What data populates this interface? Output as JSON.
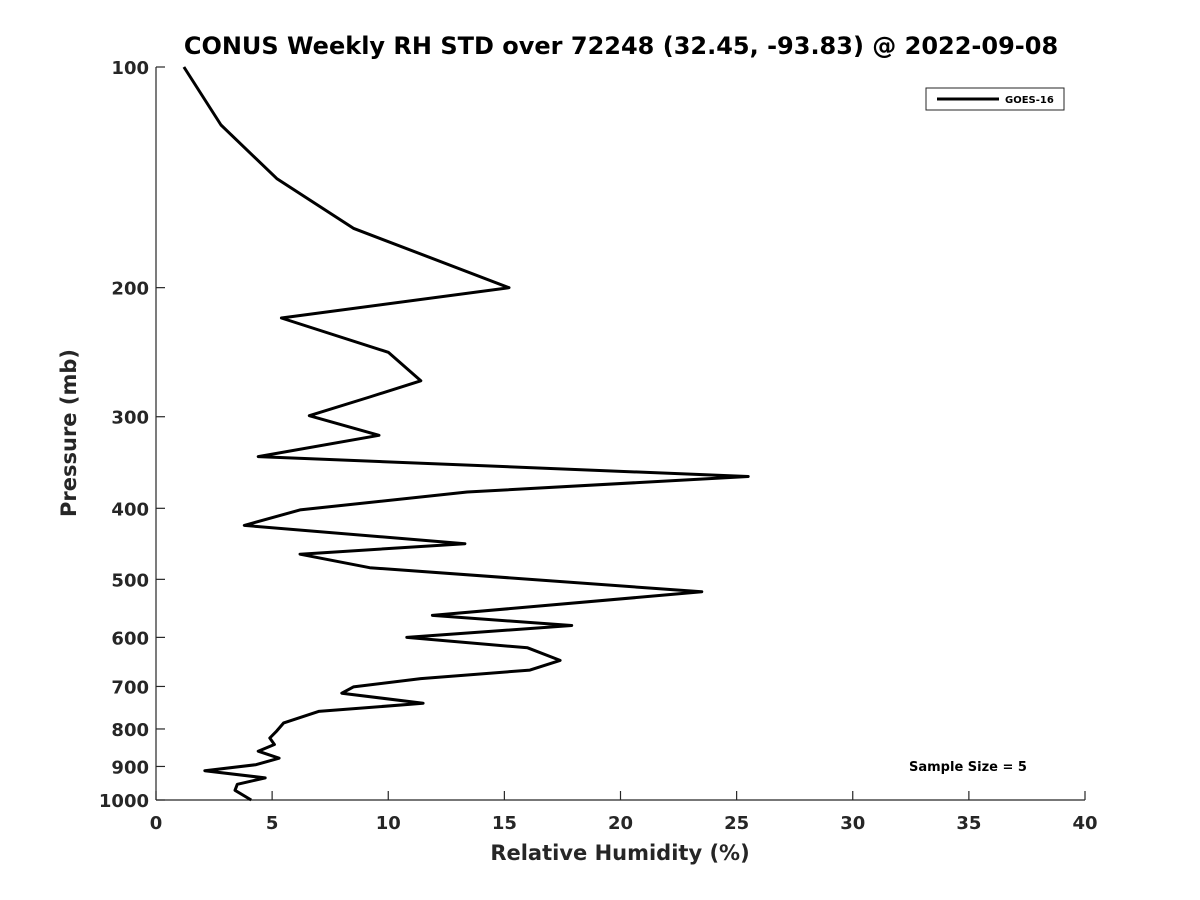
{
  "chart_data": {
    "type": "line",
    "title": "CONUS Weekly RH STD over 72248 (32.45, -93.83) @ 2022-09-08",
    "xlabel": "Relative Humidity (%)",
    "ylabel": "Pressure (mb)",
    "xlim": [
      0,
      40
    ],
    "ylim": [
      100,
      1000
    ],
    "yscale": "log",
    "y_reversed": true,
    "xticks": [
      0,
      5,
      10,
      15,
      20,
      25,
      30,
      35,
      40
    ],
    "yticks": [
      100,
      200,
      300,
      400,
      500,
      600,
      700,
      800,
      900,
      1000
    ],
    "grid": false,
    "legend_position": "top-right",
    "series": [
      {
        "name": "GOES-16",
        "color": "#000000",
        "x": [
          1.2,
          2.8,
          5.2,
          8.5,
          15.2,
          5.4,
          10.0,
          11.4,
          9.2,
          6.6,
          9.6,
          4.4,
          25.5,
          13.4,
          6.2,
          3.8,
          13.3,
          6.2,
          9.2,
          23.5,
          11.9,
          17.9,
          10.8,
          16.0,
          17.4,
          16.1,
          11.4,
          8.5,
          8.0,
          11.5,
          7.0,
          5.5,
          5.2,
          4.9,
          5.1,
          4.4,
          5.3,
          4.3,
          2.1,
          4.7,
          3.5,
          3.4,
          4.1
        ],
        "y": [
          100,
          120,
          142,
          166,
          200,
          220,
          245,
          268,
          282,
          299,
          318,
          340,
          362,
          380,
          402,
          422,
          447,
          462,
          482,
          520,
          560,
          578,
          600,
          620,
          645,
          665,
          683,
          701,
          715,
          738,
          757,
          785,
          805,
          823,
          840,
          858,
          877,
          895,
          912,
          933,
          952,
          970,
          1000
        ]
      }
    ],
    "annotations": [
      "Sample Size = 5"
    ]
  }
}
